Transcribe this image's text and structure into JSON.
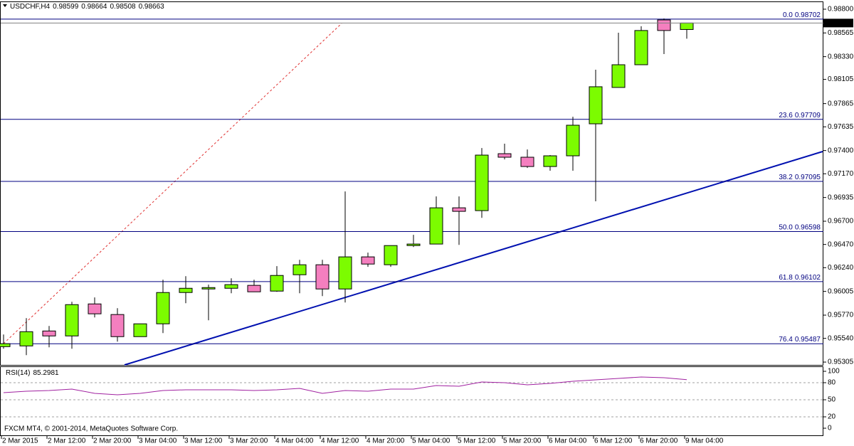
{
  "chart_data": [
    {
      "type": "candlestick",
      "title": "USDCHF,H4",
      "categories": [
        "2 Mar 2015",
        null,
        "2 Mar 12:00",
        null,
        "2 Mar 20:00",
        null,
        "3 Mar 04:00",
        null,
        "3 Mar 12:00",
        null,
        "3 Mar 20:00",
        null,
        "4 Mar 04:00",
        null,
        "4 Mar 12:00",
        null,
        "4 Mar 20:00",
        null,
        "5 Mar 04:00",
        null,
        "5 Mar 12:00",
        null,
        "5 Mar 20:00",
        null,
        "6 Mar 04:00",
        null,
        "6 Mar 12:00",
        null,
        "6 Mar 20:00",
        null,
        "9 Mar 04:00"
      ],
      "open": [
        0.95458,
        0.95465,
        0.95613,
        0.95564,
        0.95881,
        0.95776,
        0.95557,
        0.95684,
        0.95994,
        0.96029,
        0.96036,
        0.96065,
        0.96008,
        0.9617,
        0.96269,
        0.96029,
        0.96347,
        0.96269,
        0.96459,
        0.96474,
        0.96833,
        0.96805,
        0.97369,
        0.97334,
        0.97242,
        0.97348,
        0.97665,
        0.98025,
        0.9825,
        0.98694,
        0.98599
      ],
      "high": [
        0.95578,
        0.9574,
        0.95663,
        0.95902,
        0.95945,
        0.95839,
        0.95684,
        0.96121,
        0.96156,
        0.96072,
        0.96135,
        0.96121,
        0.96255,
        0.96318,
        0.96318,
        0.96995,
        0.96389,
        0.96459,
        0.96565,
        0.96946,
        0.96946,
        0.97425,
        0.97468,
        0.97411,
        0.97355,
        0.97735,
        0.98201,
        0.98567,
        0.98631,
        0.98708,
        0.98664
      ],
      "low": [
        0.95437,
        0.95374,
        0.95451,
        0.95437,
        0.95747,
        0.95508,
        0.95557,
        0.95592,
        0.95888,
        0.95719,
        0.95987,
        0.96001,
        0.96001,
        0.95987,
        0.95959,
        0.95895,
        0.96248,
        0.96248,
        0.96445,
        0.96474,
        0.96466,
        0.96734,
        0.97312,
        0.97228,
        0.972,
        0.972,
        0.96897,
        0.98025,
        0.9825,
        0.98356,
        0.98508
      ],
      "close": [
        0.95487,
        0.95606,
        0.95564,
        0.95874,
        0.95783,
        0.95557,
        0.95684,
        0.95994,
        0.96036,
        0.96043,
        0.96072,
        0.96001,
        0.96163,
        0.96269,
        0.96029,
        0.96347,
        0.96276,
        0.96459,
        0.96474,
        0.96833,
        0.96798,
        0.97355,
        0.97334,
        0.97242,
        0.97348,
        0.97651,
        0.98032,
        0.9825,
        0.98589,
        0.98589,
        0.98663
      ],
      "up_color": "#7cfc00",
      "down_color": "#f47fbf",
      "ylim": [
        0.95277,
        0.9887
      ],
      "yticks": [
        {
          "value": 0.988,
          "label": "0.98800"
        },
        0.98565,
        {
          "value": 0.9833,
          "label": "0.98330"
        },
        0.98105,
        0.97865,
        0.97635,
        {
          "value": 0.974,
          "label": "0.97400"
        },
        {
          "value": 0.9717,
          "label": "0.97170"
        },
        0.96935,
        {
          "value": 0.967,
          "label": "0.96700"
        },
        {
          "value": 0.9647,
          "label": "0.96470"
        },
        {
          "value": 0.9624,
          "label": "0.96240"
        },
        0.96005,
        {
          "value": 0.9577,
          "label": "0.95770"
        },
        {
          "value": 0.9554,
          "label": "0.95540"
        },
        0.95305
      ],
      "fib_levels": [
        {
          "label": "0.0",
          "price": 0.98702
        },
        {
          "label": "23.6",
          "price": 0.97709
        },
        {
          "label": "38.2",
          "price": 0.97095
        },
        {
          "label": "50.0",
          "price": 0.96598
        },
        {
          "label": "61.8",
          "price": 0.96102
        },
        {
          "label": "76.4",
          "price": 0.95487
        }
      ],
      "fib_color": "#000080"
    },
    {
      "type": "line",
      "title": "RSI(14)",
      "values": [
        62.5,
        65,
        66.3,
        68.8,
        61.3,
        58.8,
        61.3,
        66.3,
        67.5,
        67.5,
        67.5,
        66.3,
        67.5,
        70,
        61.3,
        66.3,
        65,
        68.8,
        68.8,
        75,
        73.8,
        81.3,
        80,
        76.3,
        78.8,
        82.5,
        85,
        87.5,
        90,
        88.8,
        85.2981
      ],
      "color": "#a020a0",
      "ylim": [
        0,
        100
      ],
      "yticks": [
        0,
        20,
        50,
        80,
        100
      ],
      "annotation": "FXCM MT4, © 2001-2014, MetaQuotes Software Corp."
    }
  ]
}
